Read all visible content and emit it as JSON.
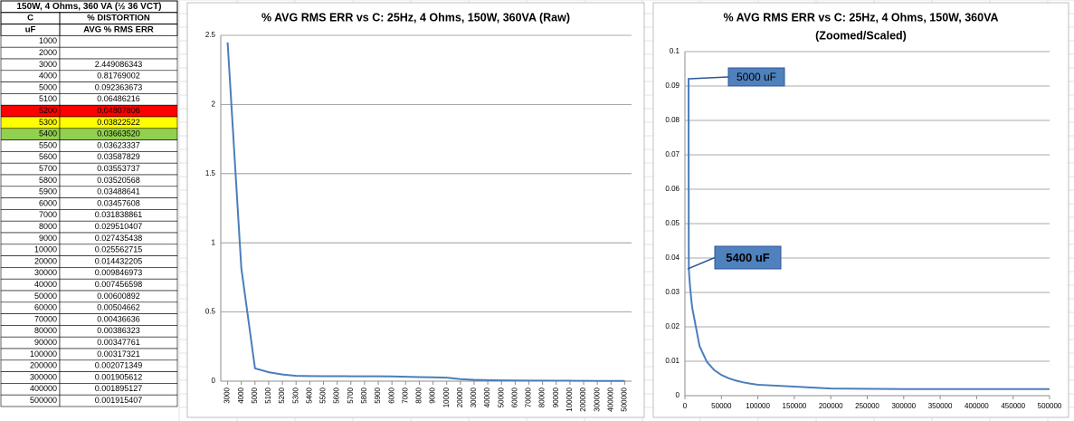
{
  "table": {
    "title": "150W, 4 Ohms, 360 VA (½ 36 VCT)",
    "headers": [
      [
        "C",
        "% DISTORTION"
      ],
      [
        "uF",
        "AVG % RMS ERR"
      ]
    ],
    "rows": [
      {
        "cells": [
          "1000",
          null
        ]
      },
      {
        "cells": [
          "2000",
          null
        ]
      },
      {
        "cells": [
          "3000",
          "2.449086343"
        ]
      },
      {
        "cells": [
          "4000",
          "0.81769002"
        ]
      },
      {
        "cells": [
          "5000",
          "0.092363673"
        ]
      },
      {
        "cells": [
          "5100",
          "0.06486216"
        ]
      },
      {
        "cells": [
          "5200",
          "0.04807806"
        ],
        "fill": "#ff0000"
      },
      {
        "cells": [
          "5300",
          "0.03822522"
        ],
        "fill": "#ffff00"
      },
      {
        "cells": [
          "5400",
          "0.03663520"
        ],
        "fill": "#92d050"
      },
      {
        "cells": [
          "5500",
          "0.03623337"
        ]
      },
      {
        "cells": [
          "5600",
          "0.03587829"
        ]
      },
      {
        "cells": [
          "5700",
          "0.03553737"
        ]
      },
      {
        "cells": [
          "5800",
          "0.03520568"
        ]
      },
      {
        "cells": [
          "5900",
          "0.03488641"
        ]
      },
      {
        "cells": [
          "6000",
          "0.03457608"
        ]
      },
      {
        "cells": [
          "7000",
          "0.031838861"
        ]
      },
      {
        "cells": [
          "8000",
          "0.029510407"
        ]
      },
      {
        "cells": [
          "9000",
          "0.027435438"
        ]
      },
      {
        "cells": [
          "10000",
          "0.025562715"
        ]
      },
      {
        "cells": [
          "20000",
          "0.014432205"
        ]
      },
      {
        "cells": [
          "30000",
          "0.009846973"
        ]
      },
      {
        "cells": [
          "40000",
          "0.007456598"
        ]
      },
      {
        "cells": [
          "50000",
          "0.00600892"
        ]
      },
      {
        "cells": [
          "60000",
          "0.00504662"
        ]
      },
      {
        "cells": [
          "70000",
          "0.00436636"
        ]
      },
      {
        "cells": [
          "80000",
          "0.00386323"
        ]
      },
      {
        "cells": [
          "90000",
          "0.00347761"
        ]
      },
      {
        "cells": [
          "100000",
          "0.00317321"
        ]
      },
      {
        "cells": [
          "200000",
          "0.002071349"
        ]
      },
      {
        "cells": [
          "300000",
          "0.001905612"
        ]
      },
      {
        "cells": [
          "400000",
          "0.001895127"
        ]
      },
      {
        "cells": [
          "500000",
          "0.001915407"
        ]
      }
    ]
  },
  "chart_data": [
    {
      "type": "line",
      "title": "% AVG RMS ERR vs C: 25Hz, 4 Ohms, 150W, 360VA (Raw)",
      "color": "#4a7ebb",
      "grid": true,
      "categories": [
        "3000",
        "4000",
        "5000",
        "5100",
        "5200",
        "5300",
        "5400",
        "5500",
        "5600",
        "5700",
        "5800",
        "5900",
        "6000",
        "7000",
        "8000",
        "9000",
        "10000",
        "20000",
        "30000",
        "40000",
        "50000",
        "60000",
        "70000",
        "80000",
        "90000",
        "100000",
        "200000",
        "300000",
        "400000",
        "500000"
      ],
      "values": [
        2.449086343,
        0.81769002,
        0.092363673,
        0.06486216,
        0.04807806,
        0.03822522,
        0.0366352,
        0.03623337,
        0.03587829,
        0.03553737,
        0.03520568,
        0.03488641,
        0.03457608,
        0.031838861,
        0.029510407,
        0.027435438,
        0.025562715,
        0.014432205,
        0.009846973,
        0.007456598,
        0.00600892,
        0.00504662,
        0.00436636,
        0.00386323,
        0.00347761,
        0.00317321,
        0.002071349,
        0.001905612,
        0.001895127,
        0.001915407
      ],
      "ylim": [
        0,
        2.5
      ],
      "yticks": [
        0,
        0.5,
        1,
        1.5,
        2,
        2.5
      ]
    },
    {
      "type": "xyline",
      "title": "% AVG RMS ERR vs C:   25Hz, 4 Ohms, 150W, 360VA",
      "subtitle": "(Zoomed/Scaled)",
      "color": "#4a7ebb",
      "grid": true,
      "x": [
        5000,
        5100,
        5200,
        5300,
        5400,
        5500,
        5600,
        5700,
        5800,
        5900,
        6000,
        7000,
        8000,
        9000,
        10000,
        20000,
        30000,
        40000,
        50000,
        60000,
        70000,
        80000,
        90000,
        100000,
        200000,
        300000,
        400000,
        500000
      ],
      "values": [
        0.092363673,
        0.06486216,
        0.04807806,
        0.03822522,
        0.0366352,
        0.03623337,
        0.03587829,
        0.03553737,
        0.03520568,
        0.03488641,
        0.03457608,
        0.031838861,
        0.029510407,
        0.027435438,
        0.025562715,
        0.014432205,
        0.009846973,
        0.007456598,
        0.00600892,
        0.00504662,
        0.00436636,
        0.00386323,
        0.00347761,
        0.00317321,
        0.002071349,
        0.001905612,
        0.001895127,
        0.001915407
      ],
      "xlim": [
        0,
        500000
      ],
      "xticks": [
        0,
        50000,
        100000,
        150000,
        200000,
        250000,
        300000,
        350000,
        400000,
        450000,
        500000
      ],
      "ylim": [
        0,
        0.1
      ],
      "yticks": [
        0,
        0.01,
        0.02,
        0.03,
        0.04,
        0.05,
        0.06,
        0.07,
        0.08,
        0.09,
        0.1
      ],
      "annotations": [
        "5000 uF",
        "5400 uF"
      ]
    }
  ]
}
